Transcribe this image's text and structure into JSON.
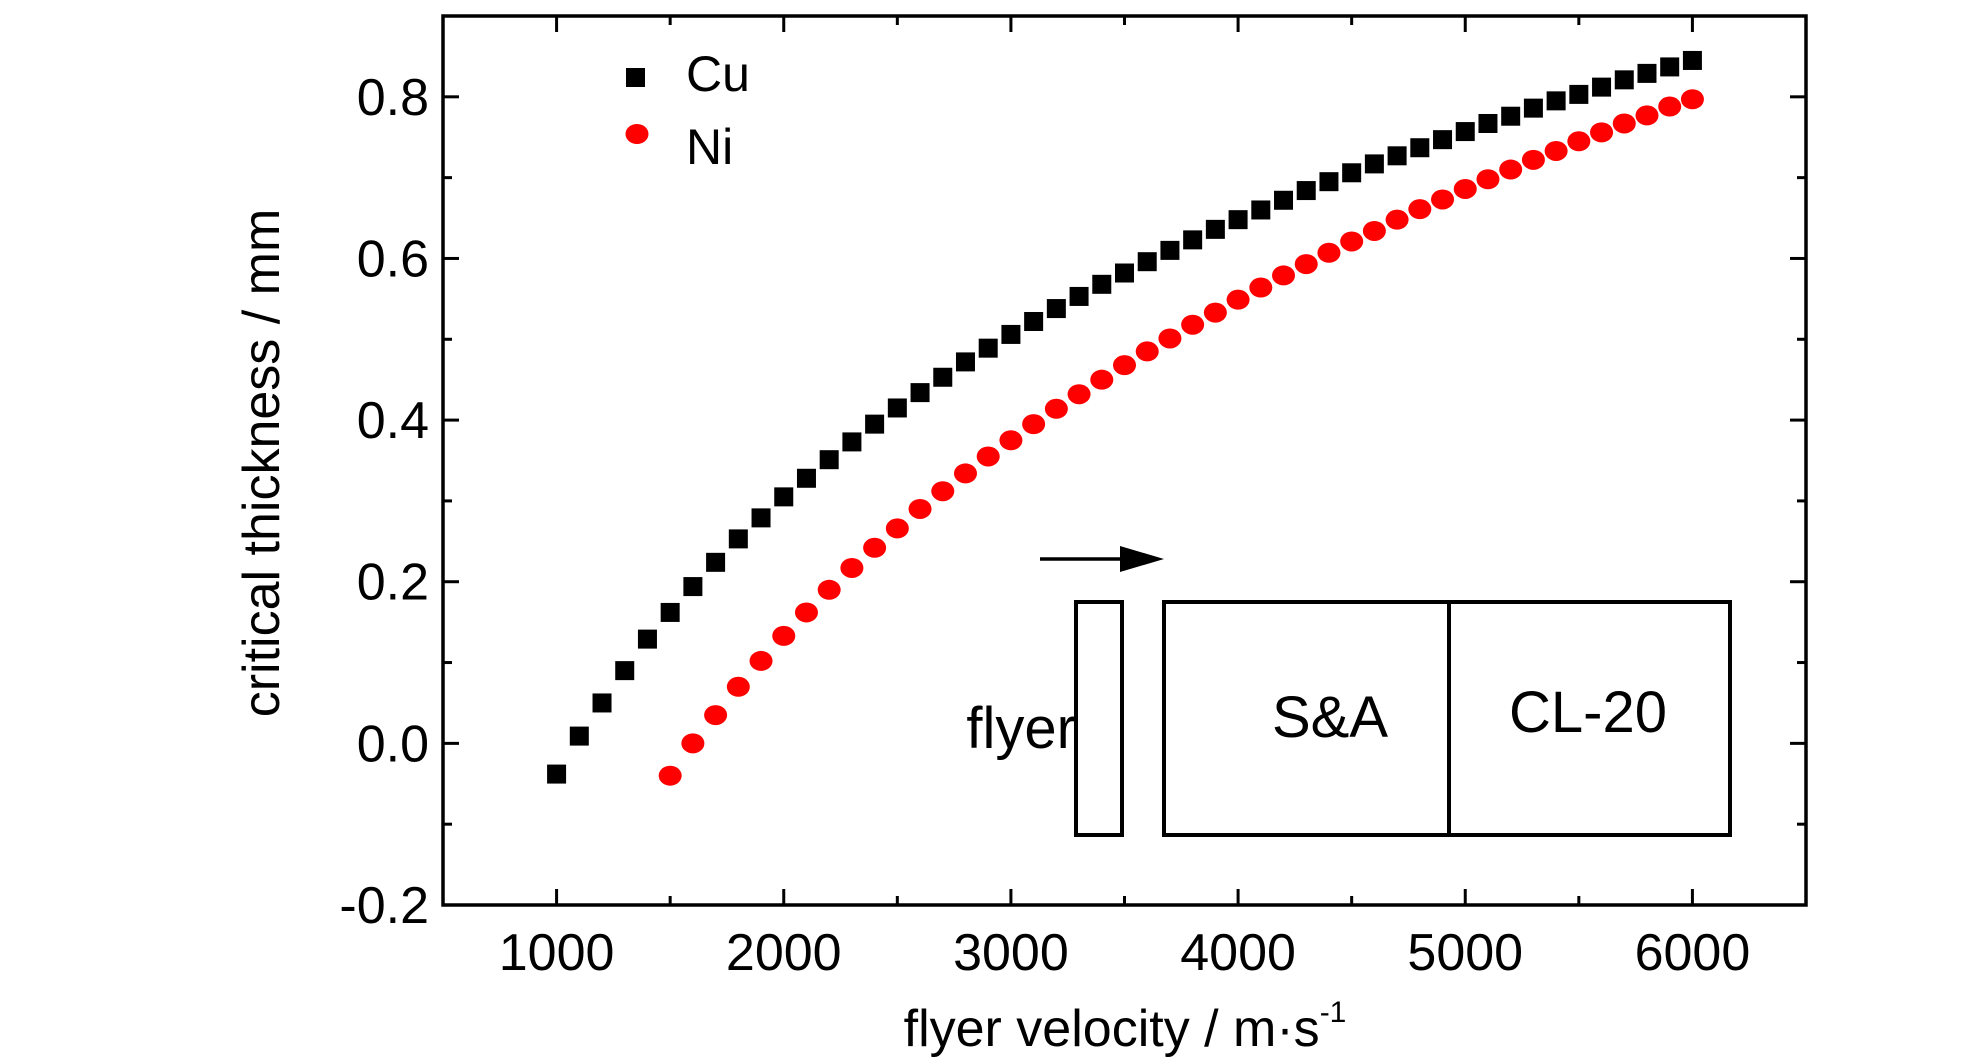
{
  "chart_data": {
    "type": "scatter",
    "title": "",
    "xlabel": "flyer velocity / m·s",
    "xlabel_superscript": "-1",
    "ylabel": "critical thickness / mm",
    "xlim": [
      500,
      6500
    ],
    "ylim": [
      -0.2,
      0.9
    ],
    "xticks": [
      1000,
      2000,
      3000,
      4000,
      5000,
      6000
    ],
    "yticks": [
      -0.2,
      0.0,
      0.2,
      0.4,
      0.6,
      0.8
    ],
    "xtick_labels": [
      "1000",
      "2000",
      "3000",
      "4000",
      "5000",
      "6000"
    ],
    "ytick_labels": [
      "-0.2",
      "0.0",
      "0.2",
      "0.4",
      "0.6",
      "0.8"
    ],
    "grid": false,
    "legend_position": "top-left",
    "series": [
      {
        "name": "Cu",
        "marker": "square",
        "color": "#000000",
        "x": [
          1000,
          1100,
          1200,
          1300,
          1400,
          1500,
          1600,
          1700,
          1800,
          1900,
          2000,
          2100,
          2200,
          2300,
          2400,
          2500,
          2600,
          2700,
          2800,
          2900,
          3000,
          3100,
          3200,
          3300,
          3400,
          3500,
          3600,
          3700,
          3800,
          3900,
          4000,
          4100,
          4200,
          4300,
          4400,
          4500,
          4600,
          4700,
          4800,
          4900,
          5000,
          5100,
          5200,
          5300,
          5400,
          5500,
          5600,
          5700,
          5800,
          5900,
          6000
        ],
        "y": [
          -0.038,
          0.009,
          0.05,
          0.09,
          0.129,
          0.162,
          0.194,
          0.224,
          0.253,
          0.279,
          0.305,
          0.328,
          0.351,
          0.373,
          0.395,
          0.415,
          0.434,
          0.453,
          0.472,
          0.489,
          0.506,
          0.522,
          0.538,
          0.553,
          0.568,
          0.582,
          0.596,
          0.61,
          0.623,
          0.636,
          0.648,
          0.66,
          0.672,
          0.684,
          0.695,
          0.706,
          0.717,
          0.727,
          0.737,
          0.747,
          0.757,
          0.767,
          0.776,
          0.786,
          0.795,
          0.803,
          0.812,
          0.821,
          0.829,
          0.837,
          0.845
        ]
      },
      {
        "name": "Ni",
        "marker": "circle",
        "color": "#ff0000",
        "x": [
          1500,
          1600,
          1700,
          1800,
          1900,
          2000,
          2100,
          2200,
          2300,
          2400,
          2500,
          2600,
          2700,
          2800,
          2900,
          3000,
          3100,
          3200,
          3300,
          3400,
          3500,
          3600,
          3700,
          3800,
          3900,
          4000,
          4100,
          4200,
          4300,
          4400,
          4500,
          4600,
          4700,
          4800,
          4900,
          5000,
          5100,
          5200,
          5300,
          5400,
          5500,
          5600,
          5700,
          5800,
          5900,
          6000
        ],
        "y": [
          -0.04,
          0.0,
          0.035,
          0.07,
          0.102,
          0.133,
          0.162,
          0.19,
          0.217,
          0.242,
          0.266,
          0.29,
          0.312,
          0.334,
          0.355,
          0.375,
          0.395,
          0.414,
          0.432,
          0.45,
          0.468,
          0.485,
          0.501,
          0.518,
          0.533,
          0.549,
          0.564,
          0.579,
          0.593,
          0.607,
          0.621,
          0.634,
          0.648,
          0.661,
          0.673,
          0.686,
          0.698,
          0.71,
          0.722,
          0.733,
          0.745,
          0.756,
          0.767,
          0.777,
          0.788,
          0.797
        ]
      }
    ]
  },
  "inset": {
    "flyer_label": "flyer",
    "box1_label": "S&A",
    "box2_label": "CL-20"
  }
}
